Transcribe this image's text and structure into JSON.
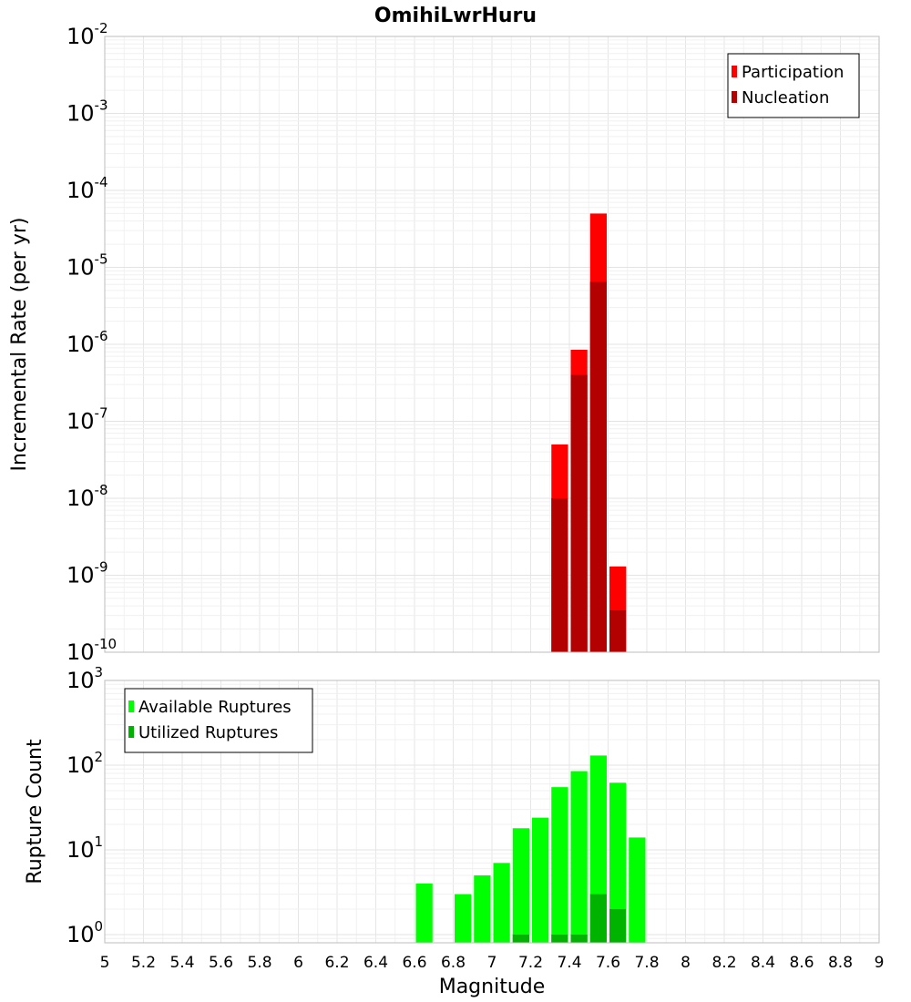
{
  "chart_data": [
    {
      "type": "bar",
      "title": "OmihiLwrHuru",
      "ylabel": "Incremental Rate (per yr)",
      "yscale": "log",
      "ylim": [
        1e-10,
        0.01
      ],
      "xlim": [
        5,
        9
      ],
      "bin_width": 0.1,
      "grid": true,
      "legend_position": "top-right",
      "yticks": [
        {
          "base": "10",
          "exp": "-10"
        },
        {
          "base": "10",
          "exp": "-9"
        },
        {
          "base": "10",
          "exp": "-8"
        },
        {
          "base": "10",
          "exp": "-7"
        },
        {
          "base": "10",
          "exp": "-6"
        },
        {
          "base": "10",
          "exp": "-5"
        },
        {
          "base": "10",
          "exp": "-4"
        },
        {
          "base": "10",
          "exp": "-3"
        },
        {
          "base": "10",
          "exp": "-2"
        }
      ],
      "series": [
        {
          "name": "Participation",
          "color": "#ff0000",
          "x": [
            7.35,
            7.45,
            7.55,
            7.65
          ],
          "values": [
            5e-08,
            8.5e-07,
            5e-05,
            1.3e-09
          ]
        },
        {
          "name": "Nucleation",
          "color": "#b30000",
          "x": [
            7.35,
            7.45,
            7.55,
            7.65
          ],
          "values": [
            1e-08,
            4e-07,
            6.5e-06,
            3.5e-10
          ]
        }
      ]
    },
    {
      "type": "bar",
      "ylabel": "Rupture Count",
      "xlabel": "Magnitude",
      "yscale": "log",
      "ylim": [
        0.8,
        1000
      ],
      "xlim": [
        5,
        9
      ],
      "bin_width": 0.1,
      "grid": true,
      "legend_position": "top-left",
      "yticks": [
        {
          "base": "10",
          "exp": "0",
          "value": 1
        },
        {
          "base": "10",
          "exp": "1",
          "value": 10
        },
        {
          "base": "10",
          "exp": "2",
          "value": 100
        },
        {
          "base": "10",
          "exp": "3",
          "value": 1000
        }
      ],
      "xticks": [
        "5",
        "5.2",
        "5.4",
        "5.6",
        "5.8",
        "6",
        "6.2",
        "6.4",
        "6.6",
        "6.8",
        "7",
        "7.2",
        "7.4",
        "7.6",
        "7.8",
        "8",
        "8.2",
        "8.4",
        "8.6",
        "8.8",
        "9"
      ],
      "series": [
        {
          "name": "Available Ruptures",
          "color": "#00ff00",
          "x": [
            6.65,
            6.85,
            6.95,
            7.05,
            7.15,
            7.25,
            7.35,
            7.45,
            7.55,
            7.65,
            7.75
          ],
          "values": [
            4,
            3,
            5,
            7,
            18,
            24,
            55,
            85,
            130,
            62,
            14
          ]
        },
        {
          "name": "Utilized Ruptures",
          "color": "#00b300",
          "x": [
            7.15,
            7.35,
            7.45,
            7.55,
            7.65
          ],
          "values": [
            1,
            1,
            1,
            3,
            2
          ]
        }
      ]
    }
  ]
}
